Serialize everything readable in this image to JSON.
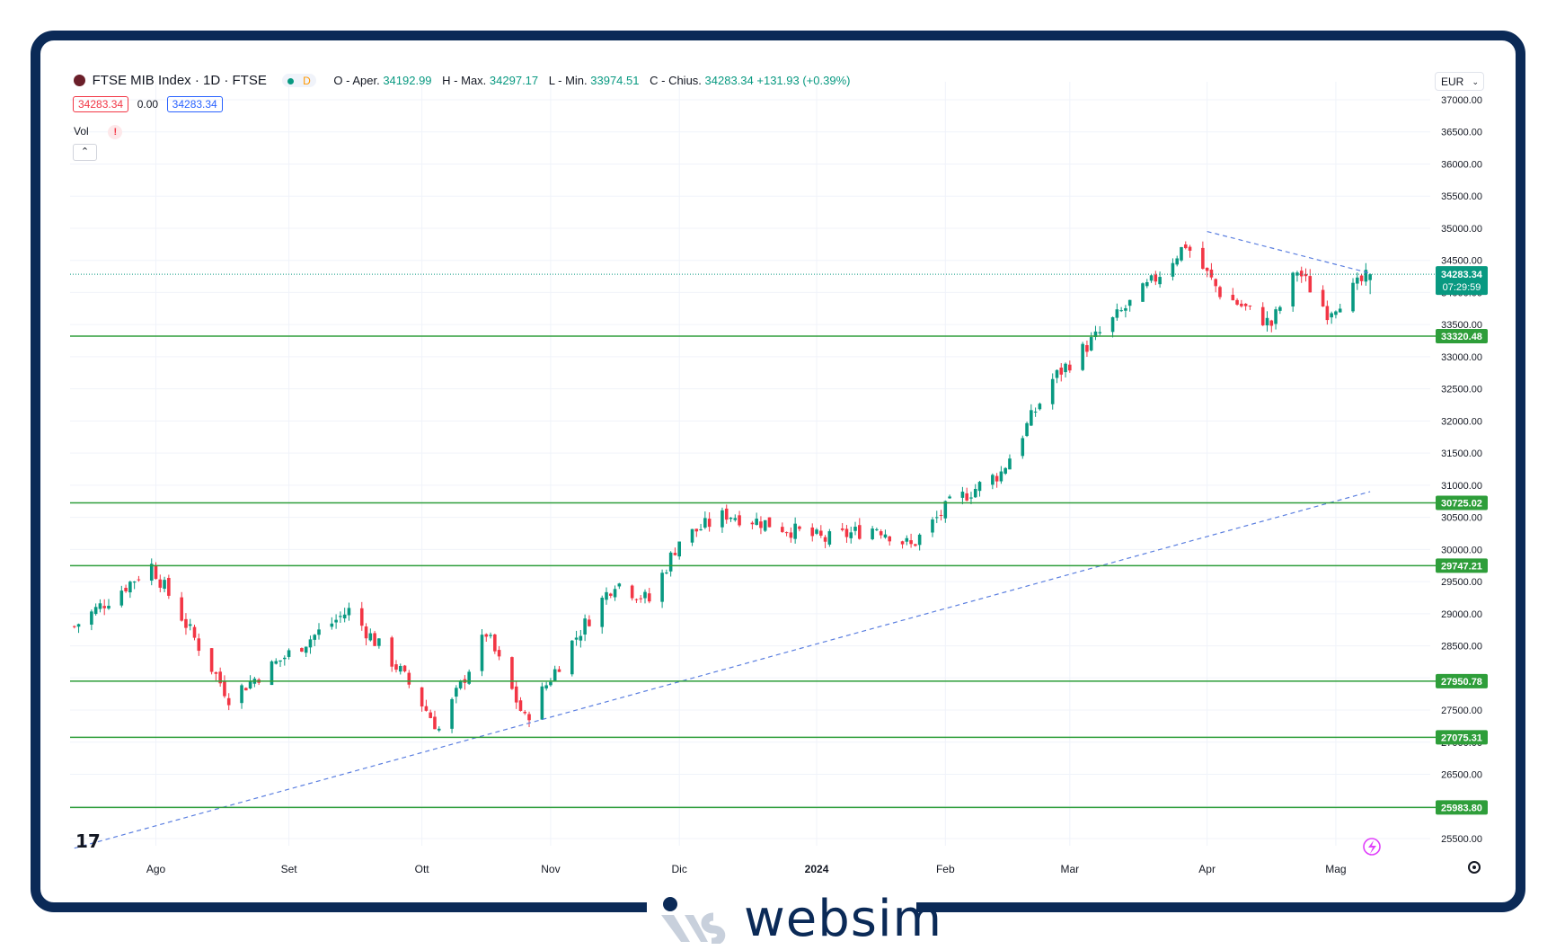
{
  "header": {
    "title": "FTSE MIB Index · 1D · FTSE",
    "mode_badge": "D",
    "ohlc": [
      {
        "label": "O - Aper.",
        "value": "34192.99"
      },
      {
        "label": "H - Max.",
        "value": "34297.17"
      },
      {
        "label": "L - Min.",
        "value": "33974.51"
      },
      {
        "label": "C - Chius.",
        "value": "34283.34 +131.93 (+0.39%)"
      }
    ],
    "sell_price": "34283.34",
    "spread": "0.00",
    "buy_price": "34283.34",
    "volume_label": "Vol",
    "volume_alert": "!",
    "collapse_icon": "chevron-up-icon"
  },
  "currency": "EUR",
  "last_price_tag": {
    "price": "34283.34",
    "countdown": "07:29:59"
  },
  "colors": {
    "up": "#089981",
    "down": "#f23645",
    "level": "#2e9e3a",
    "trend": "#5b7fe0",
    "frame": "#0b2a57"
  },
  "chart_data": {
    "type": "candlestick",
    "title": "FTSE MIB Index · 1D · FTSE",
    "ylim": [
      25300,
      37000
    ],
    "grid": true,
    "y_ticks": [
      "37000.00",
      "36500.00",
      "36000.00",
      "35500.00",
      "35000.00",
      "34500.00",
      "34000.00",
      "33500.00",
      "33000.00",
      "32500.00",
      "32000.00",
      "31500.00",
      "31000.00",
      "30500.00",
      "30000.00",
      "29500.00",
      "29000.00",
      "28500.00",
      "28000.00",
      "27500.00",
      "27000.00",
      "26500.00",
      "26000.00",
      "25500.00"
    ],
    "x_ticks": [
      "Ago",
      "Set",
      "Ott",
      "Nov",
      "Dic",
      "2024",
      "Feb",
      "Mar",
      "Apr",
      "Mag"
    ],
    "support_resistance_levels": [
      "33320.48",
      "30725.02",
      "29747.21",
      "27950.78",
      "27075.31",
      "25983.80"
    ],
    "last_price": "34283.34",
    "trendlines": [
      {
        "style": "dashed",
        "from": [
          "2023-07-13",
          25350
        ],
        "to": [
          "2024-05-10",
          30900
        ]
      },
      {
        "style": "dashed",
        "from": [
          "2024-04-02",
          34950
        ],
        "to": [
          "2024-05-10",
          34300
        ]
      }
    ],
    "anchors": [
      {
        "date": "2023-07-13",
        "close": 28800
      },
      {
        "date": "2023-07-31",
        "close": 29750
      },
      {
        "date": "2023-08-18",
        "close": 27700
      },
      {
        "date": "2023-09-15",
        "close": 29050
      },
      {
        "date": "2023-09-27",
        "close": 28100
      },
      {
        "date": "2023-10-06",
        "close": 27200
      },
      {
        "date": "2023-10-17",
        "close": 28700
      },
      {
        "date": "2023-10-26",
        "close": 27350
      },
      {
        "date": "2023-11-06",
        "close": 28550
      },
      {
        "date": "2023-11-16",
        "close": 29500
      },
      {
        "date": "2023-11-24",
        "close": 29200
      },
      {
        "date": "2023-12-01",
        "close": 30150
      },
      {
        "date": "2023-12-12",
        "close": 30550
      },
      {
        "date": "2023-12-22",
        "close": 30400
      },
      {
        "date": "2024-01-04",
        "close": 30150
      },
      {
        "date": "2024-01-16",
        "close": 30350
      },
      {
        "date": "2024-01-24",
        "close": 30050
      },
      {
        "date": "2024-02-02",
        "close": 30700
      },
      {
        "date": "2024-02-14",
        "close": 31200
      },
      {
        "date": "2024-02-26",
        "close": 32650
      },
      {
        "date": "2024-03-07",
        "close": 33300
      },
      {
        "date": "2024-03-20",
        "close": 34150
      },
      {
        "date": "2024-03-28",
        "close": 34750
      },
      {
        "date": "2024-04-05",
        "close": 34000
      },
      {
        "date": "2024-04-17",
        "close": 33500
      },
      {
        "date": "2024-04-23",
        "close": 34350
      },
      {
        "date": "2024-04-30",
        "close": 33700
      },
      {
        "date": "2024-05-10",
        "close": 34283
      }
    ]
  },
  "footer": {
    "logo_text": "websim"
  }
}
